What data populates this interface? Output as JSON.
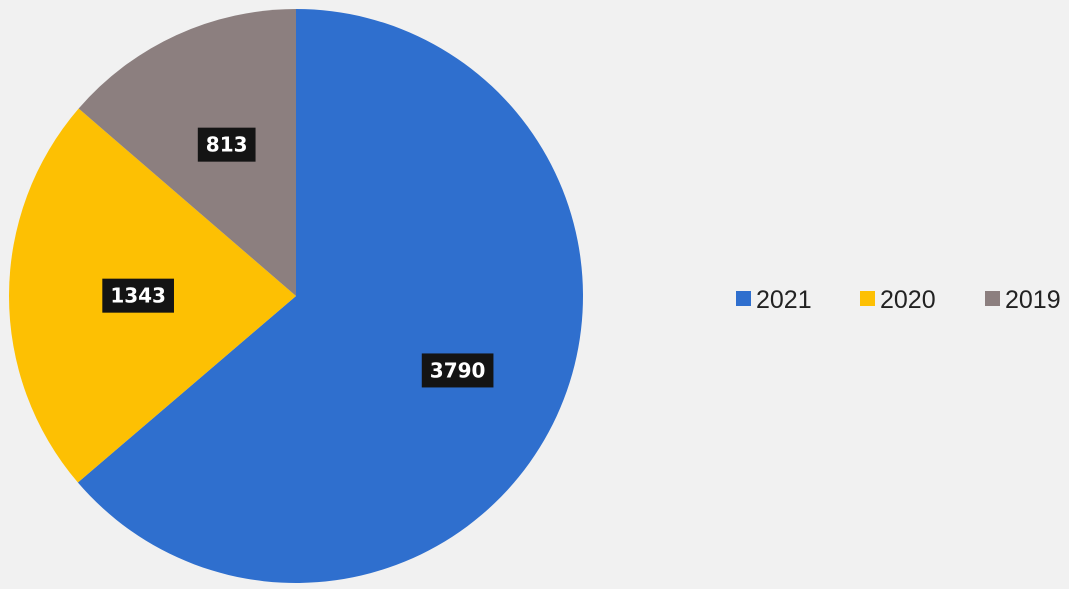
{
  "chart_data": {
    "type": "pie",
    "categories": [
      "2021",
      "2020",
      "2019"
    ],
    "values": [
      3790,
      1343,
      813
    ],
    "colors": [
      "#2f6fce",
      "#fdc003",
      "#8c7f7f"
    ],
    "data_labels": [
      "3790",
      "1343",
      "813"
    ],
    "legend": {
      "entries": [
        "2021",
        "2020",
        "2019"
      ],
      "placement": "right"
    },
    "start_angle_deg": 0,
    "direction": "clockwise"
  }
}
